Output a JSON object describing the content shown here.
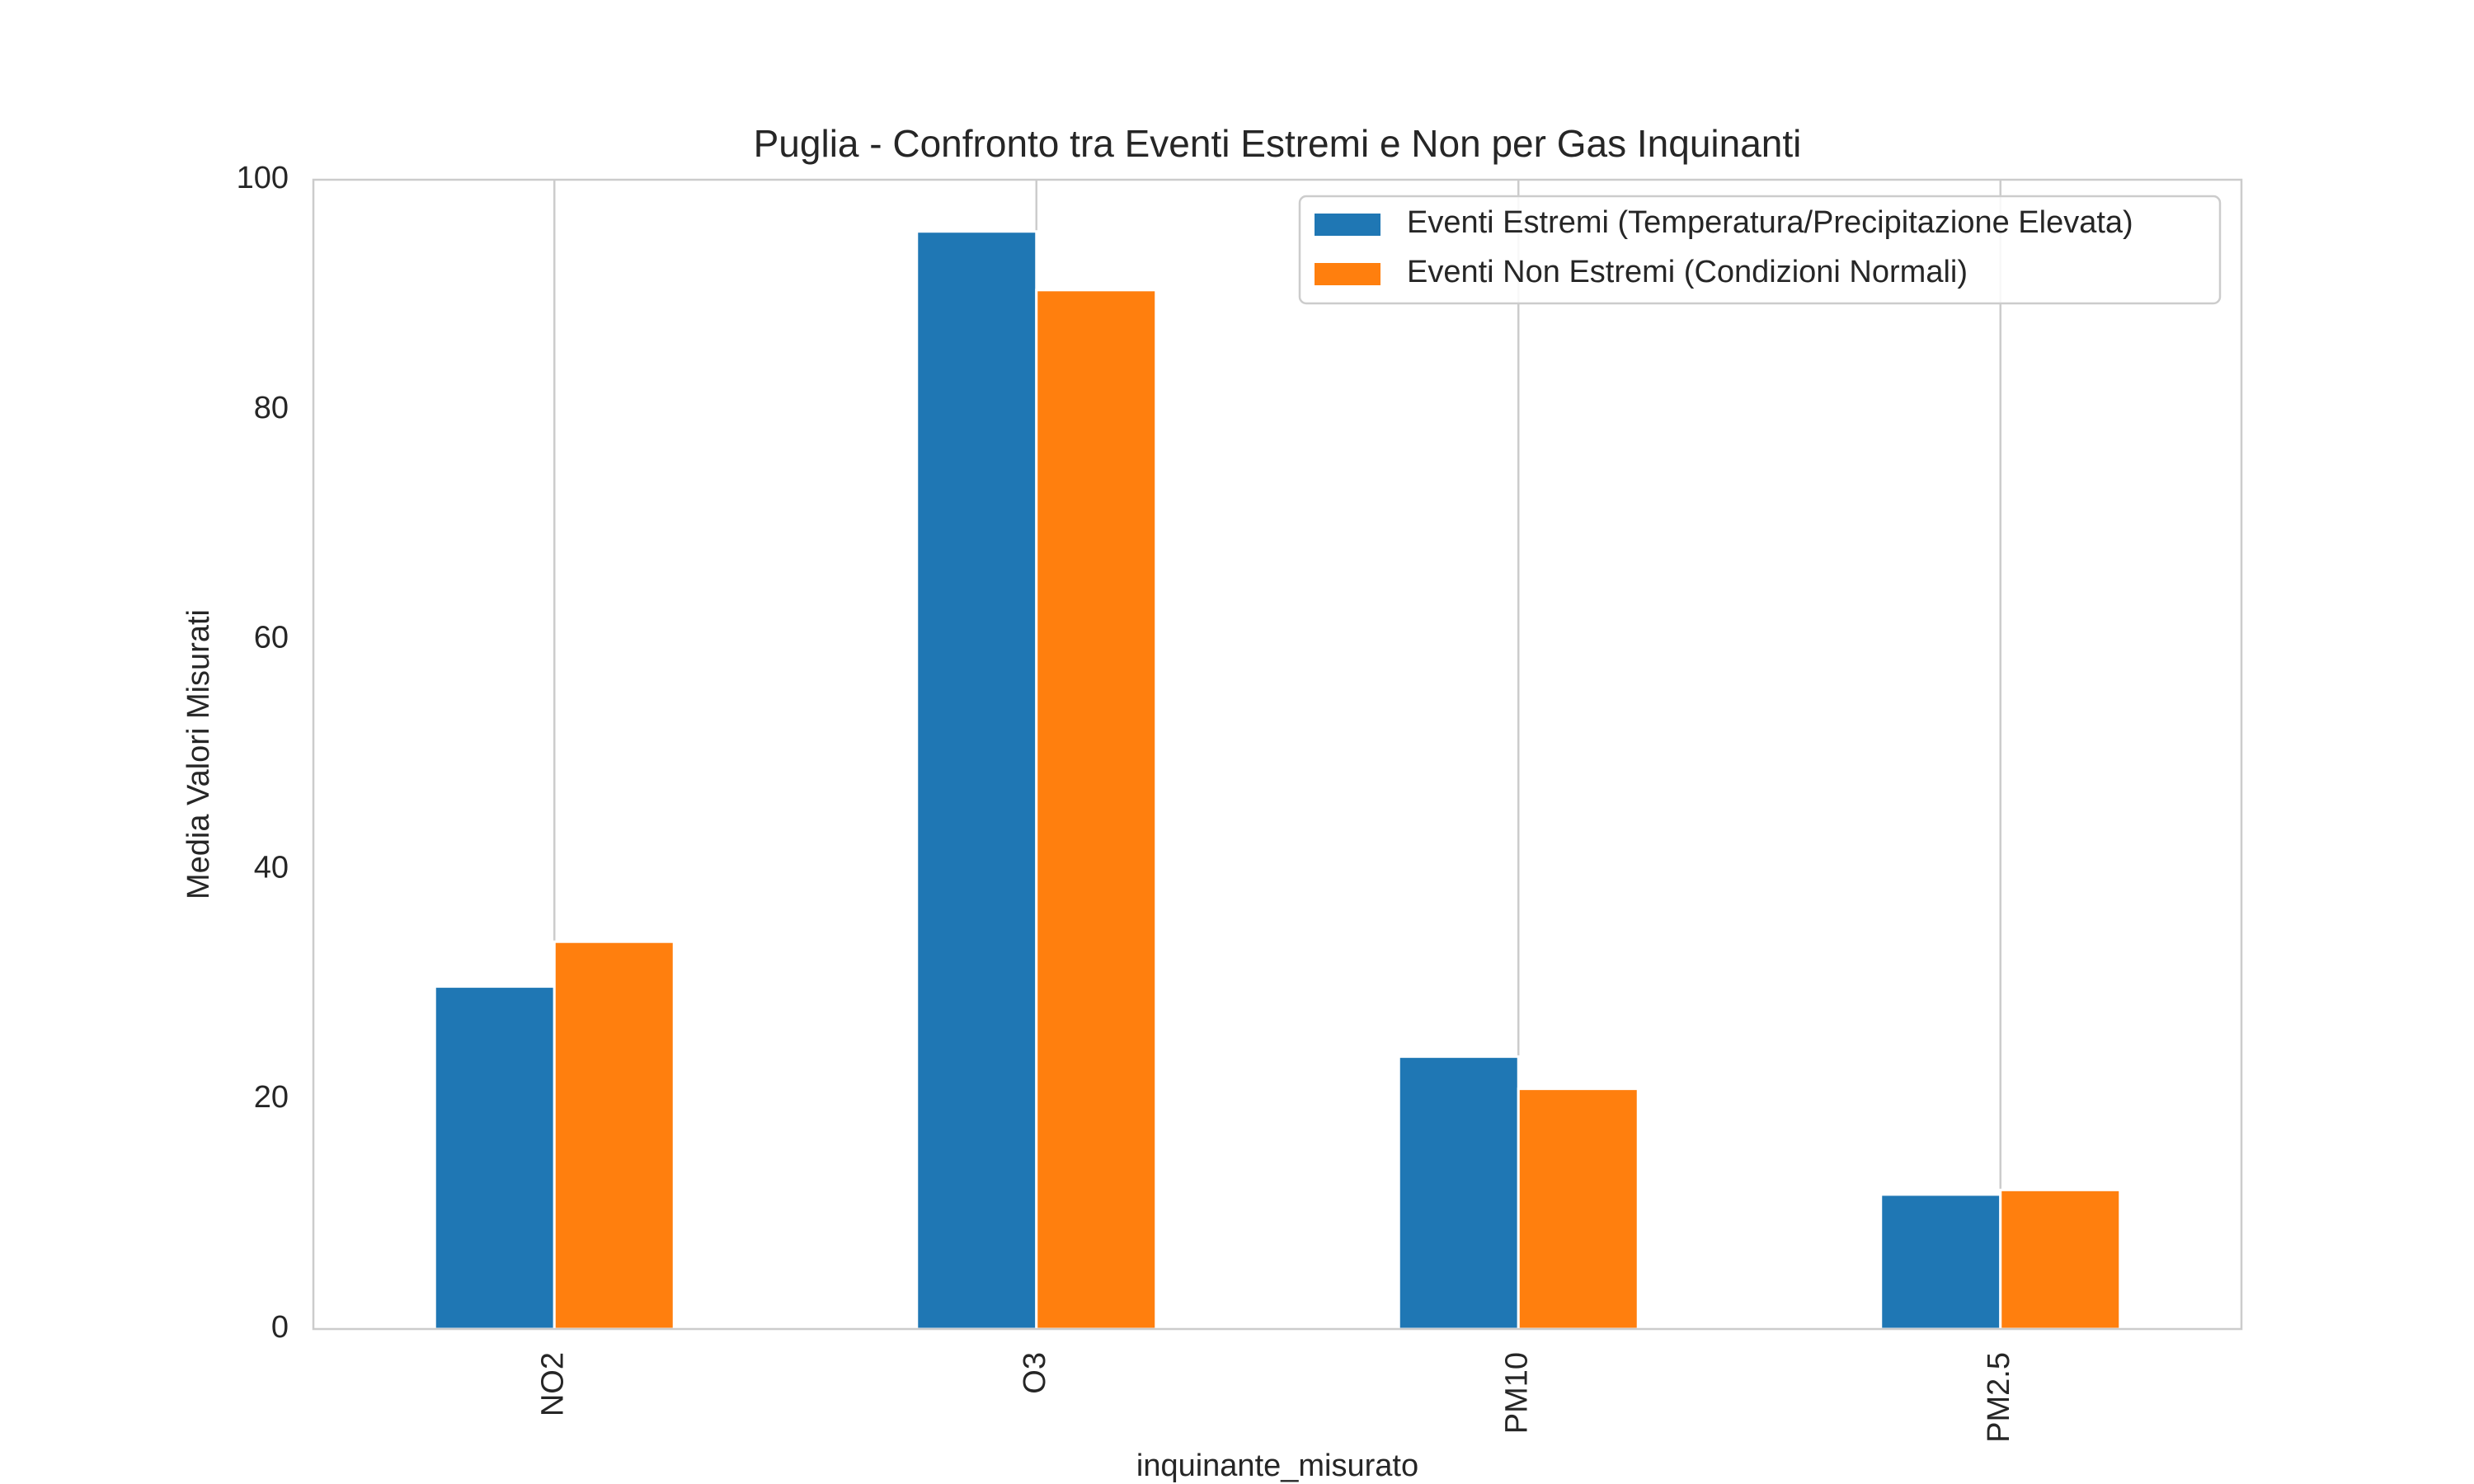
{
  "chart_data": {
    "type": "bar",
    "title": "Puglia - Confronto tra Eventi Estremi e Non per Gas Inquinanti",
    "xlabel": "inquinante_misurato",
    "ylabel": "Media Valori Misurati",
    "categories": [
      "NO2",
      "O3",
      "PM10",
      "PM2.5"
    ],
    "series": [
      {
        "name": "Eventi Estremi (Temperatura/Precipitazione Elevata)",
        "color": "#1f77b4",
        "values": [
          29.8,
          95.5,
          23.7,
          11.7
        ]
      },
      {
        "name": "Eventi Non Estremi (Condizioni Normali)",
        "color": "#ff7f0e",
        "values": [
          33.7,
          90.4,
          20.9,
          12.1
        ]
      }
    ],
    "ylim": [
      0,
      100
    ],
    "yticks": [
      0,
      20,
      40,
      60,
      80,
      100
    ],
    "grid": "x",
    "legend_position": "top-right"
  }
}
